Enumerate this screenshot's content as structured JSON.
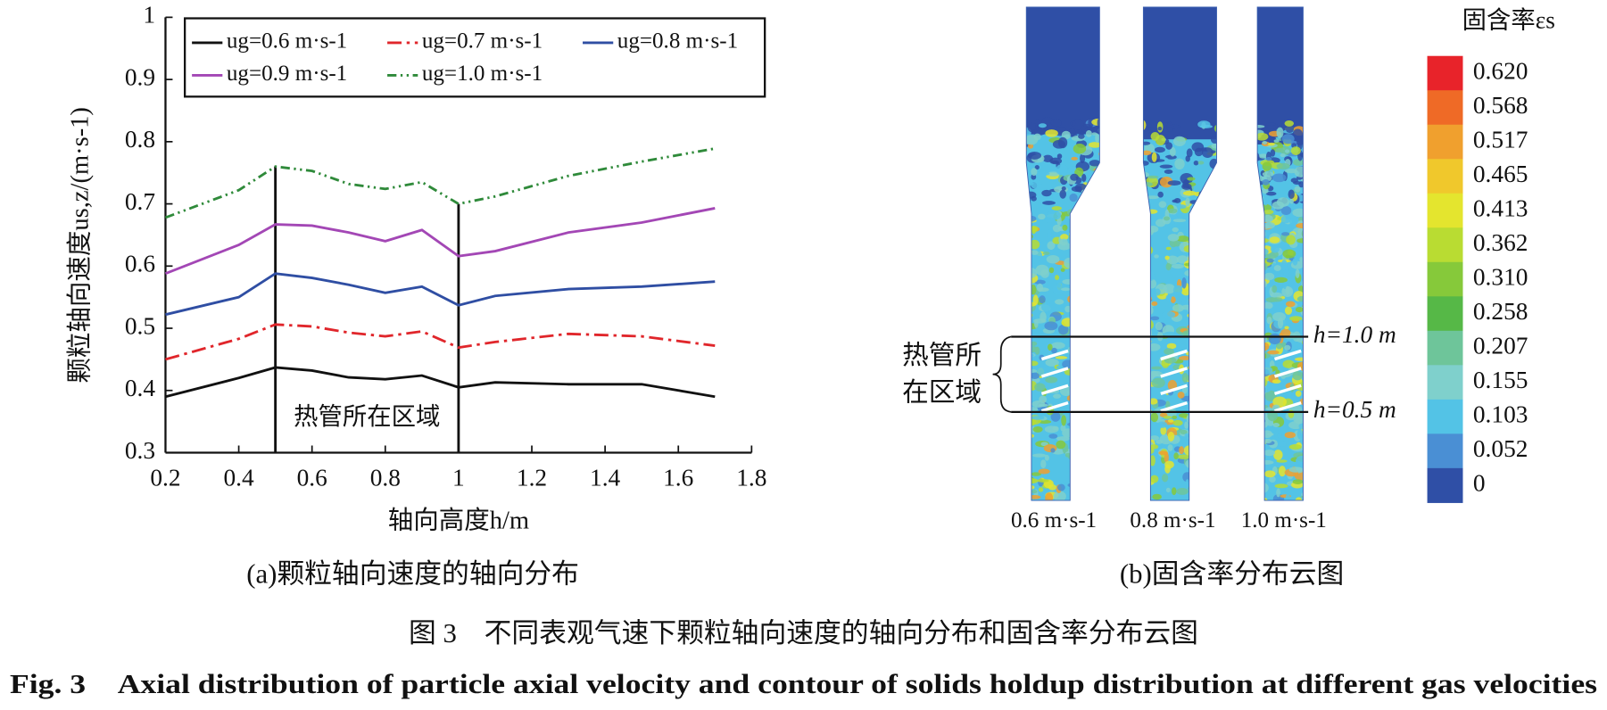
{
  "chart_data": {
    "type": "line",
    "xlabel": "轴向高度h/m",
    "ylabel": "颗粒轴向速度us,z/(m·s-1)",
    "annotation": "热管所在区域",
    "region": [
      0.5,
      1.0
    ],
    "x": [
      0.2,
      0.4,
      0.5,
      0.6,
      0.7,
      0.8,
      0.9,
      1.0,
      1.1,
      1.3,
      1.5,
      1.7
    ],
    "series": [
      {
        "name": "ug=0.6 m·s-1",
        "color": "#111111",
        "dash": "solid",
        "values": [
          0.39,
          0.42,
          0.437,
          0.432,
          0.421,
          0.418,
          0.424,
          0.405,
          0.413,
          0.41,
          0.41,
          0.39
        ]
      },
      {
        "name": "ug=0.7 m·s-1",
        "color": "#e0262b",
        "dash": "dash-dot",
        "values": [
          0.45,
          0.483,
          0.506,
          0.503,
          0.493,
          0.487,
          0.495,
          0.469,
          0.478,
          0.491,
          0.487,
          0.472
        ]
      },
      {
        "name": "ug=0.8 m·s-1",
        "color": "#2f4ea3",
        "dash": "solid",
        "values": [
          0.522,
          0.55,
          0.588,
          0.581,
          0.57,
          0.557,
          0.567,
          0.537,
          0.552,
          0.563,
          0.567,
          0.575
        ]
      },
      {
        "name": "ug=0.9 m·s-1",
        "color": "#a347b5",
        "dash": "solid",
        "values": [
          0.588,
          0.634,
          0.667,
          0.665,
          0.654,
          0.64,
          0.658,
          0.616,
          0.624,
          0.654,
          0.67,
          0.693
        ]
      },
      {
        "name": "ug=1.0 m·s-1",
        "color": "#2f8a3a",
        "dash": "dash-dot-dot",
        "values": [
          0.678,
          0.722,
          0.76,
          0.753,
          0.732,
          0.724,
          0.735,
          0.7,
          0.712,
          0.745,
          0.768,
          0.789
        ]
      }
    ],
    "xlim": [
      0.2,
      1.8
    ],
    "xticks": [
      0.2,
      0.4,
      0.6,
      0.8,
      1.0,
      1.2,
      1.4,
      1.6,
      1.8
    ],
    "ylim": [
      0.3,
      1.0
    ],
    "yticks": [
      0.3,
      0.4,
      0.5,
      0.6,
      0.7,
      0.8,
      0.9,
      1.0
    ],
    "grid": false,
    "legend": "top"
  },
  "contour": {
    "colorbar_title": "固含率εs",
    "colorbar_labels": [
      "0.620",
      "0.568",
      "0.517",
      "0.465",
      "0.413",
      "0.362",
      "0.310",
      "0.258",
      "0.207",
      "0.155",
      "0.103",
      "0.052",
      "0"
    ],
    "colorbar_colors": [
      "#e8232a",
      "#ef6a26",
      "#f0a02e",
      "#f0c82c",
      "#e4e52e",
      "#b9dc32",
      "#86c93a",
      "#56b847",
      "#6ec59a",
      "#7fd0cc",
      "#53c3e6",
      "#4a8fd4",
      "#2f4fa6"
    ],
    "columns": [
      "0.6 m·s-1",
      "0.8 m·s-1",
      "1.0 m·s-1"
    ],
    "region_label": [
      "热管所",
      "在区域"
    ],
    "upper_line": "h=1.0 m",
    "lower_line": "h=0.5 m"
  },
  "captions": {
    "a": "(a)颗粒轴向速度的轴向分布",
    "b": "(b)固含率分布云图",
    "figure_cn": "图 3　不同表观气速下颗粒轴向速度的轴向分布和固含率分布云图",
    "figure_en": "Fig. 3　Axial distribution of particle axial velocity and contour of solids holdup distribution at different gas velocities"
  }
}
